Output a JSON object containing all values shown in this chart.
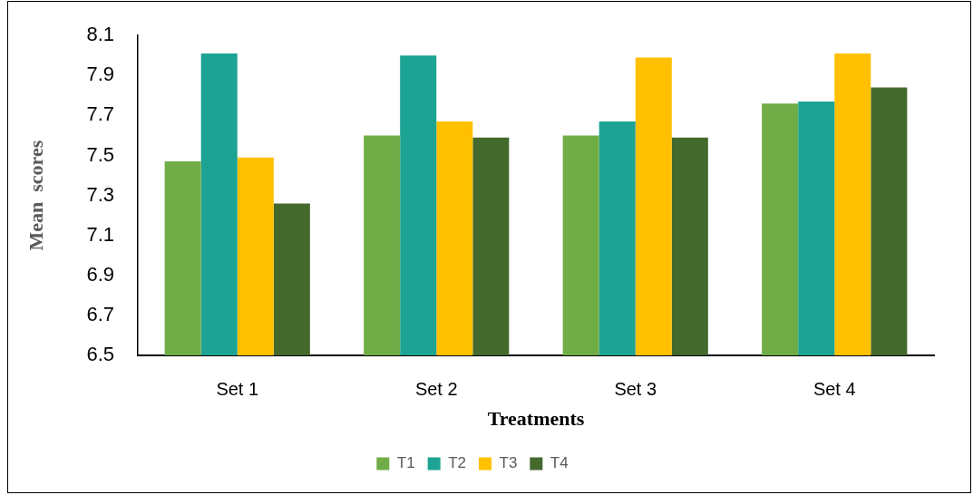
{
  "chart_data": {
    "type": "bar",
    "xlabel": "Treatments",
    "ylabel": "Mean  scores",
    "categories": [
      "Set 1",
      "Set 2",
      "Set 3",
      "Set 4"
    ],
    "series": [
      {
        "name": "T1",
        "color": "#70ad47",
        "values": [
          7.47,
          7.6,
          7.6,
          7.76
        ]
      },
      {
        "name": "T2",
        "color": "#1ca394",
        "values": [
          8.01,
          8.0,
          7.67,
          7.77
        ]
      },
      {
        "name": "T3",
        "color": "#ffc000",
        "values": [
          7.49,
          7.67,
          7.99,
          8.01
        ]
      },
      {
        "name": "T4",
        "color": "#44692d",
        "values": [
          7.26,
          7.59,
          7.59,
          7.84
        ]
      }
    ],
    "ylim": [
      6.5,
      8.1
    ],
    "yticks": [
      6.5,
      6.7,
      6.9,
      7.1,
      7.3,
      7.5,
      7.7,
      7.9,
      8.1
    ],
    "legend": "bottom"
  }
}
